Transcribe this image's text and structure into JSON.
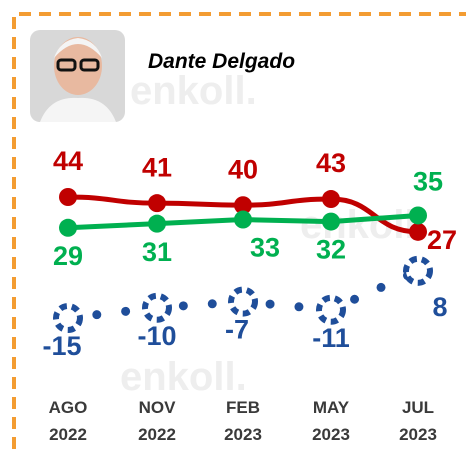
{
  "chart_data": {
    "type": "line",
    "title": "Dante Delgado",
    "watermark": "enkoll.",
    "categories": [
      "AGO\n2022",
      "NOV\n2022",
      "FEB\n2023",
      "MAY\n2023",
      "JUL\n2023"
    ],
    "series": [
      {
        "color": "#c00000",
        "values": [
          44,
          41,
          40,
          43,
          27
        ]
      },
      {
        "color": "#00b050",
        "values": [
          29,
          31,
          33,
          32,
          35
        ]
      },
      {
        "color": "#1f4e9a",
        "values": [
          -15,
          -10,
          -7,
          -11,
          8
        ]
      }
    ]
  }
}
